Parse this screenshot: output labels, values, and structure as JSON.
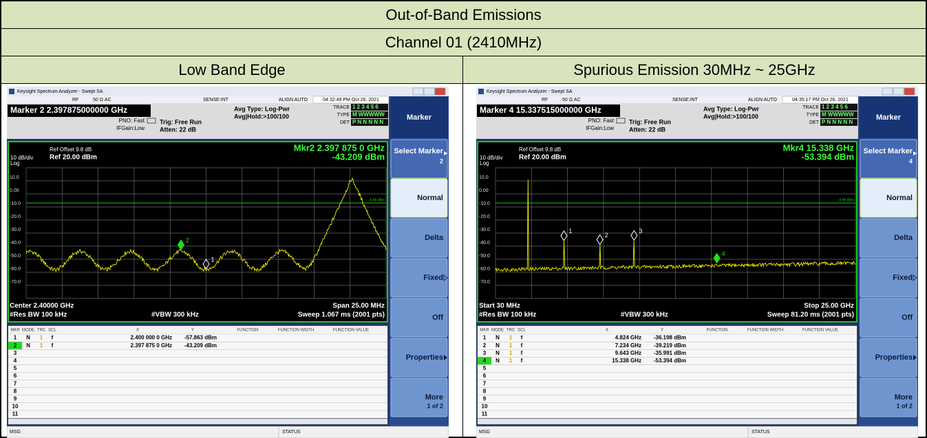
{
  "title": "Out-of-Band Emissions",
  "subtitle": "Channel 01 (2410MHz)",
  "columns": [
    "Low Band Edge",
    "Spurious Emission 30MHz ~ 25GHz"
  ],
  "panels": [
    {
      "window_title": "Keysight Spectrum Analyzer - Swept SA",
      "header": {
        "rf": "RF",
        "impedance": "50 Ω  AC",
        "sense": "SENSE:INT",
        "align": "ALIGN AUTO",
        "time": "04:32:49 PM Oct 26, 2021",
        "marker": "Marker 2 2.397875000000 GHz",
        "pno": "PNO: Fast",
        "ifgain": "IFGain:Low",
        "trig": "Trig: Free Run",
        "atten": "Atten: 22 dB",
        "avg_type": "Avg Type: Log-Pwr",
        "avg_hold": "Avg|Hold:>100/100",
        "trace_label": "TRACE",
        "trace": "1 2 3 4 5 6",
        "type_label": "TYPE",
        "type": "M WWWWW",
        "det_label": "DET",
        "det": "P N N N N N"
      },
      "plot": {
        "ref_offset": "Ref Offset 9.8 dB",
        "scale": "10 dB/div",
        "ref": "Ref 20.00 dBm",
        "log": "Log",
        "mkr_x": "Mkr2 2.397 875 0 GHz",
        "mkr_y": "-43.209 dBm",
        "yticks": [
          "10.0",
          "0.00",
          "-10.0",
          "-20.0",
          "-30.0",
          "-40.0",
          "-50.0",
          "-60.0",
          "-70.0"
        ],
        "limit": "-6.89 dBm",
        "markers": [
          "1",
          "2"
        ],
        "left_bottom": "Center 2.40000 GHz",
        "right_bottom": "Span 25.00 MHz",
        "rbw": "#Res BW 100 kHz",
        "vbw": "#VBW 300 kHz",
        "sweep": "Sweep  1.067 ms (2001 pts)"
      },
      "table": {
        "headers": [
          "MKR",
          "MODE",
          "TRC",
          "SCL",
          "X",
          "Y",
          "FUNCTION",
          "FUNCTION WIDTH",
          "FUNCTION VALUE"
        ],
        "rows": [
          [
            "1",
            "N",
            "1",
            "f",
            "2.400 000 0 GHz",
            "-57.863 dBm"
          ],
          [
            "2",
            "N",
            "1",
            "f",
            "2.397 875 0 GHz",
            "-43.209 dBm"
          ],
          [
            "3"
          ],
          [
            "4"
          ],
          [
            "5"
          ],
          [
            "6"
          ],
          [
            "7"
          ],
          [
            "8"
          ],
          [
            "9"
          ],
          [
            "10"
          ],
          [
            "11"
          ]
        ]
      },
      "menu": {
        "title": "Marker",
        "items": [
          {
            "label": "Select Marker",
            "sub": "2"
          },
          {
            "label": "Normal"
          },
          {
            "label": "Delta"
          },
          {
            "label": "Fixed"
          },
          {
            "label": "Off"
          },
          {
            "label": "Properties"
          },
          {
            "label": "More",
            "sub": "1 of 2"
          }
        ]
      },
      "status": {
        "msg": "MSG",
        "status": "STATUS"
      }
    },
    {
      "window_title": "Keysight Spectrum Analyzer - Swept SA",
      "header": {
        "rf": "RF",
        "impedance": "50 Ω  AC",
        "sense": "SENSE:INT",
        "align": "ALIGN AUTO",
        "time": "04:35:17 PM Oct 26, 2021",
        "marker": "Marker 4 15.337515000000 GHz",
        "pno": "PNO: Fast",
        "ifgain": "IFGain:Low",
        "trig": "Trig: Free Run",
        "atten": "Atten: 22 dB",
        "avg_type": "Avg Type: Log-Pwr",
        "avg_hold": "Avg|Hold:>100/100",
        "trace_label": "TRACE",
        "trace": "1 2 3 4 5 6",
        "type_label": "TYPE",
        "type": "M WWWWW",
        "det_label": "DET",
        "det": "P N N N N N"
      },
      "plot": {
        "ref_offset": "Ref Offset 9.8 dB",
        "scale": "10 dB/div",
        "ref": "Ref 20.00 dBm",
        "log": "Log",
        "mkr_x": "Mkr4 15.338 GHz",
        "mkr_y": "-53.394 dBm",
        "yticks": [
          "10.0",
          "0.00",
          "-10.0",
          "-20.0",
          "-30.0",
          "-40.0",
          "-50.0",
          "-60.0",
          "-70.0"
        ],
        "limit": "-6.89 dBm",
        "markers": [
          "1",
          "2",
          "3",
          "4"
        ],
        "left_bottom": "Start 30 MHz",
        "right_bottom": "Stop 25.00 GHz",
        "rbw": "#Res BW 100 kHz",
        "vbw": "#VBW 300 kHz",
        "sweep": "Sweep  81.20 ms (2001 pts)"
      },
      "table": {
        "headers": [
          "MKR",
          "MODE",
          "TRC",
          "SCL",
          "X",
          "Y",
          "FUNCTION",
          "FUNCTION WIDTH",
          "FUNCTION VALUE"
        ],
        "rows": [
          [
            "1",
            "N",
            "1",
            "f",
            "4.824 GHz",
            "-36.198 dBm"
          ],
          [
            "2",
            "N",
            "1",
            "f",
            "7.234 GHz",
            "-39.219 dBm"
          ],
          [
            "3",
            "N",
            "1",
            "f",
            "9.643 GHz",
            "-35.991 dBm"
          ],
          [
            "4",
            "N",
            "1",
            "f",
            "15.338 GHz",
            "-53.394 dBm"
          ],
          [
            "5"
          ],
          [
            "6"
          ],
          [
            "7"
          ],
          [
            "8"
          ],
          [
            "9"
          ],
          [
            "10"
          ],
          [
            "11"
          ]
        ]
      },
      "menu": {
        "title": "Marker",
        "items": [
          {
            "label": "Select Marker",
            "sub": "4"
          },
          {
            "label": "Normal"
          },
          {
            "label": "Delta"
          },
          {
            "label": "Fixed"
          },
          {
            "label": "Off"
          },
          {
            "label": "Properties"
          },
          {
            "label": "More",
            "sub": "1 of 2"
          }
        ]
      },
      "status": {
        "msg": "MSG",
        "status": "STATUS"
      }
    }
  ]
}
